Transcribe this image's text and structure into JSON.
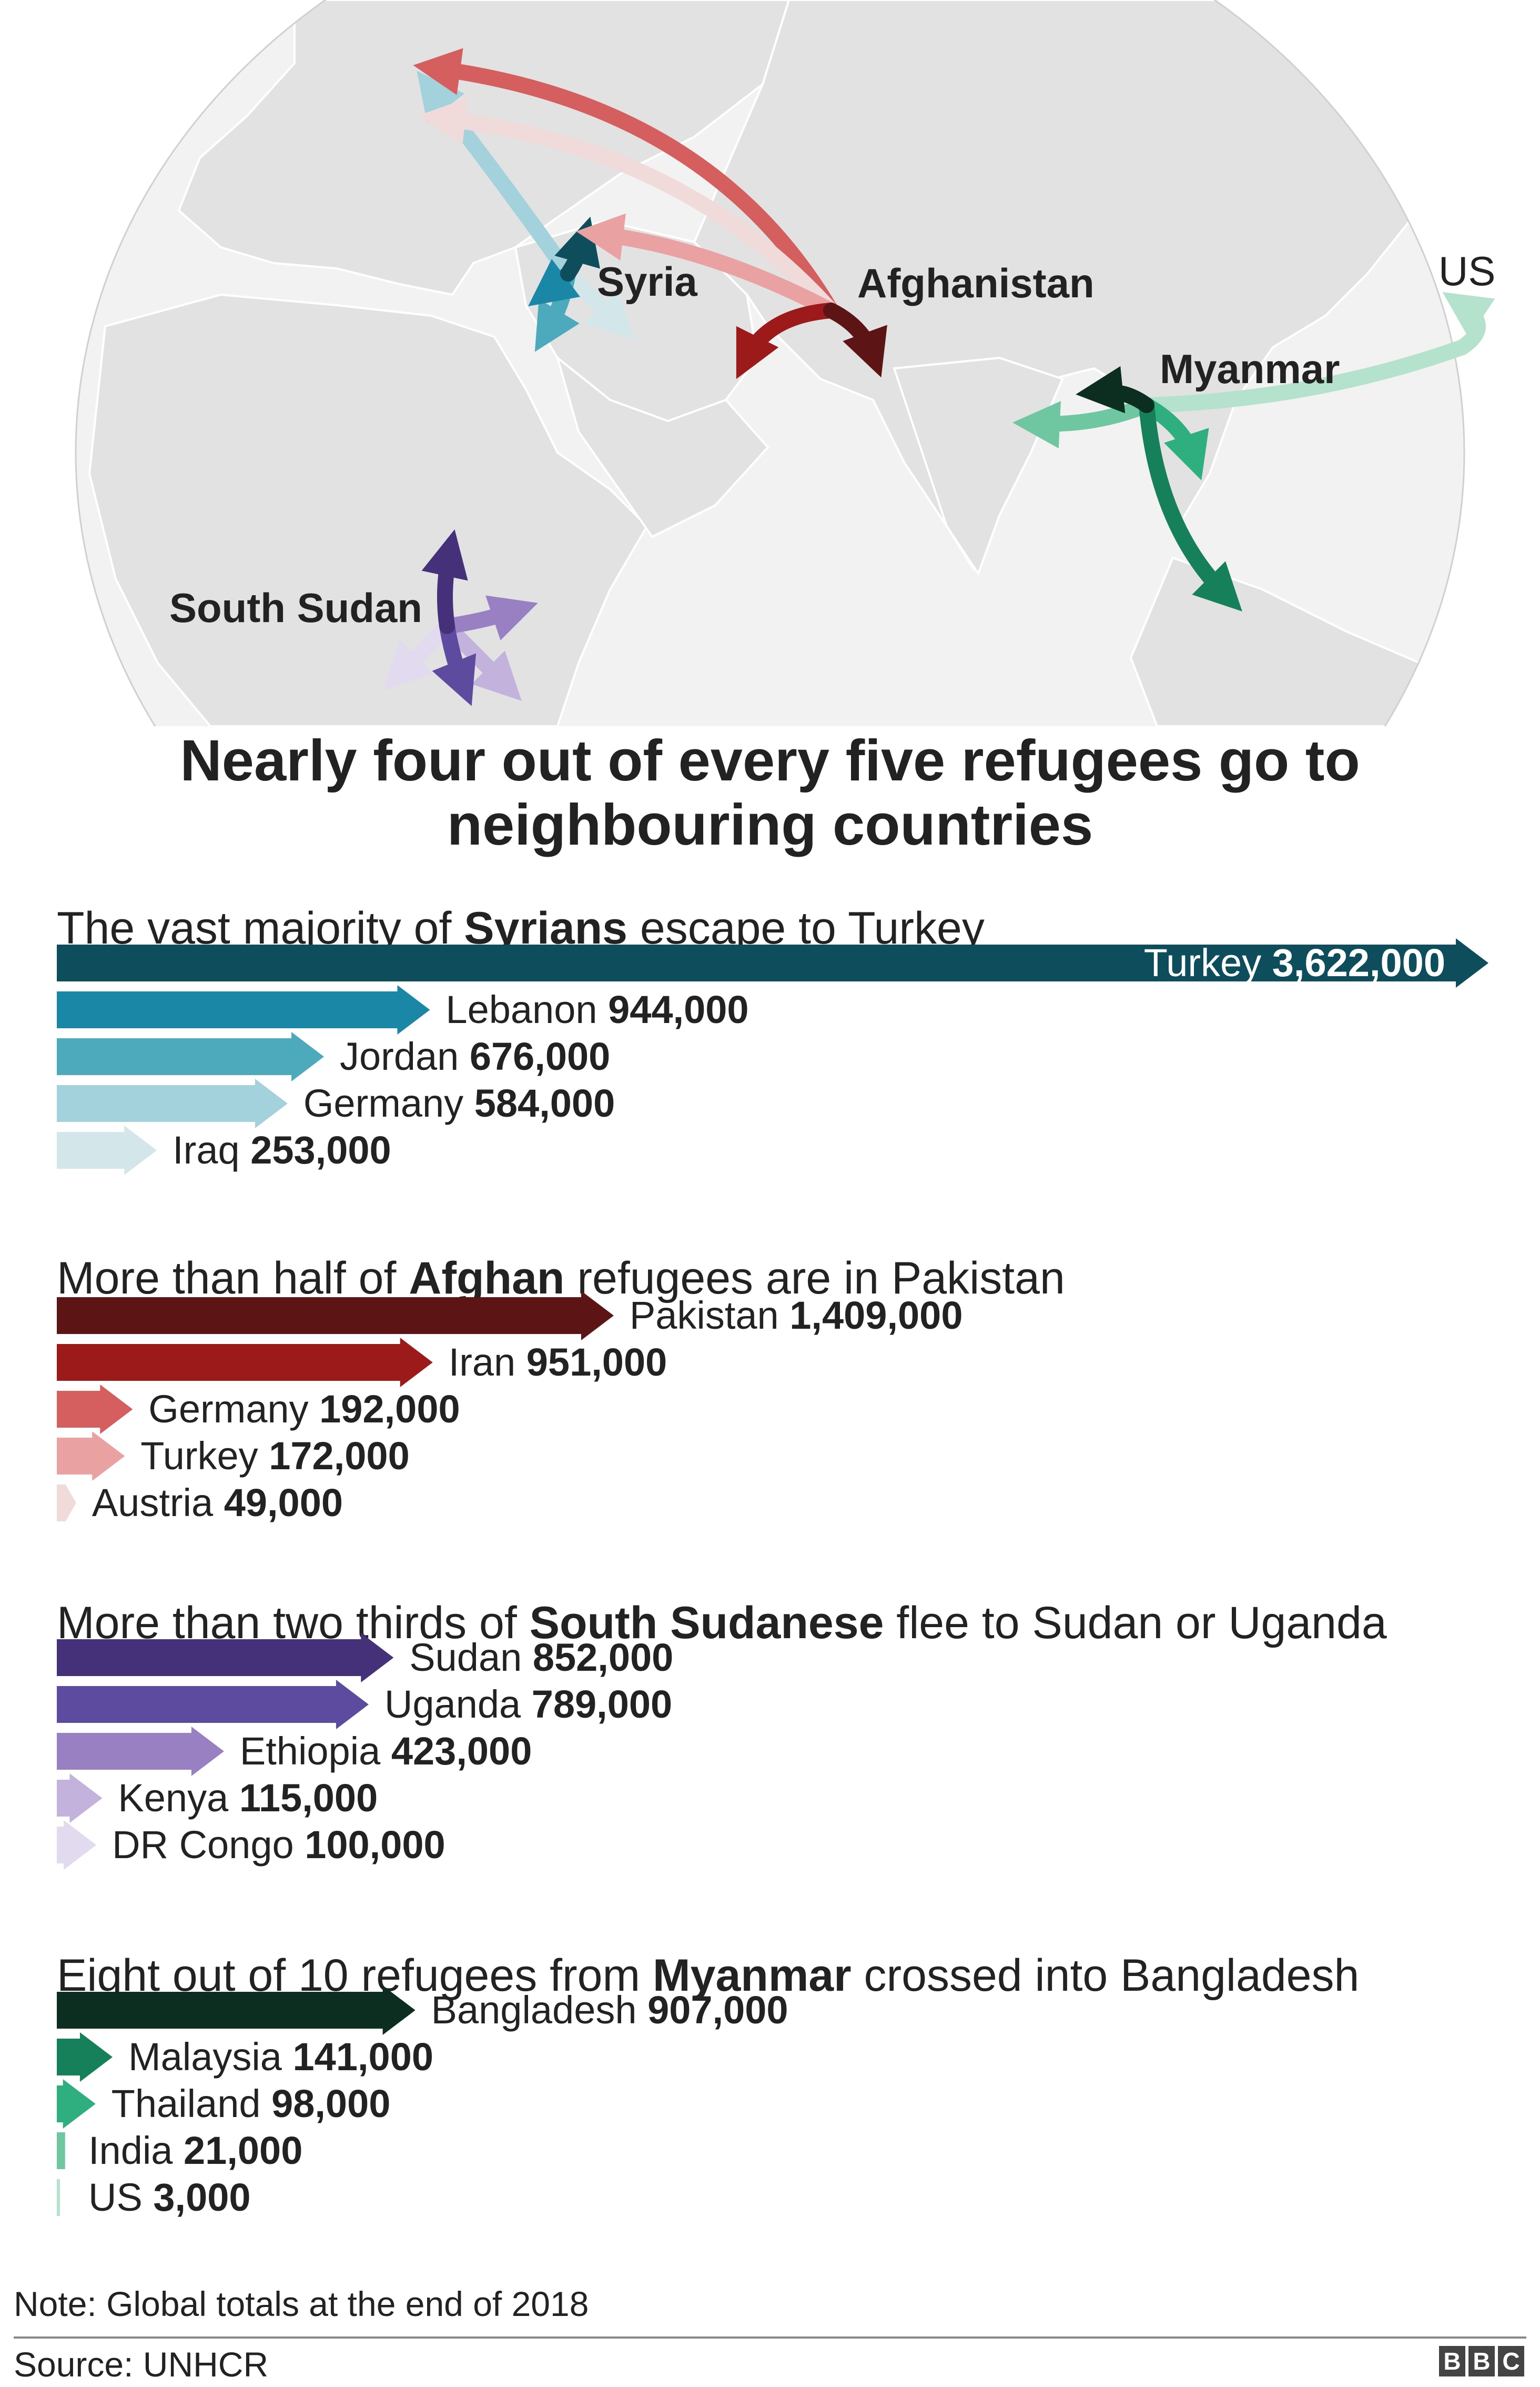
{
  "map": {
    "labels": {
      "syria": "Syria",
      "afghanistan": "Afghanistan",
      "myanmar": "Myanmar",
      "us": "US",
      "south_sudan": "South Sudan"
    }
  },
  "headline": "Nearly four out of every five refugees go to neighbouring countries",
  "chart_data": [
    {
      "type": "bar",
      "title_parts": [
        "The vast majority of ",
        "Syrians",
        " escape to Turkey"
      ],
      "categories": [
        "Turkey",
        "Lebanon",
        "Jordan",
        "Germany",
        "Iraq"
      ],
      "values": [
        3622000,
        944000,
        676000,
        584000,
        253000
      ],
      "value_labels": [
        "3,622,000",
        "944,000",
        "676,000",
        "584,000",
        "253,000"
      ],
      "colors": [
        "#0d4d5c",
        "#1a87a6",
        "#4daabd",
        "#a3d1dc",
        "#d3e7ea"
      ]
    },
    {
      "type": "bar",
      "title_parts": [
        "More than half of ",
        "Afghan",
        " refugees are in Pakistan"
      ],
      "categories": [
        "Pakistan",
        "Iran",
        "Germany",
        "Turkey",
        "Austria"
      ],
      "values": [
        1409000,
        951000,
        192000,
        172000,
        49000
      ],
      "value_labels": [
        "1,409,000",
        "951,000",
        "192,000",
        "172,000",
        "49,000"
      ],
      "colors": [
        "#5c1414",
        "#9d1a1a",
        "#d55e5e",
        "#e9a1a1",
        "#f0dada"
      ]
    },
    {
      "type": "bar",
      "title_parts": [
        "More than two thirds of ",
        "South Sudanese",
        " flee to Sudan or Uganda"
      ],
      "categories": [
        "Sudan",
        "Uganda",
        "Ethiopia",
        "Kenya",
        "DR Congo"
      ],
      "values": [
        852000,
        789000,
        423000,
        115000,
        100000
      ],
      "value_labels": [
        "852,000",
        "789,000",
        "423,000",
        "115,000",
        "100,000"
      ],
      "colors": [
        "#45307a",
        "#5d4ba0",
        "#9880c2",
        "#c2b2dc",
        "#e2daee"
      ]
    },
    {
      "type": "bar",
      "title_parts": [
        "Eight out of 10 refugees from ",
        "Myanmar",
        " crossed into Bangladesh"
      ],
      "categories": [
        "Bangladesh",
        "Malaysia",
        "Thailand",
        "India",
        "US"
      ],
      "values": [
        907000,
        141000,
        98000,
        21000,
        3000
      ],
      "value_labels": [
        "907,000",
        "141,000",
        "98,000",
        "21,000",
        "3,000"
      ],
      "colors": [
        "#0c2e20",
        "#15805a",
        "#2fae80",
        "#6fc7a1",
        "#b5e2cd"
      ]
    }
  ],
  "footer": {
    "note": "Note: Global totals at the end of 2018",
    "source": "Source: UNHCR",
    "logo_letters": [
      "B",
      "B",
      "C"
    ]
  }
}
